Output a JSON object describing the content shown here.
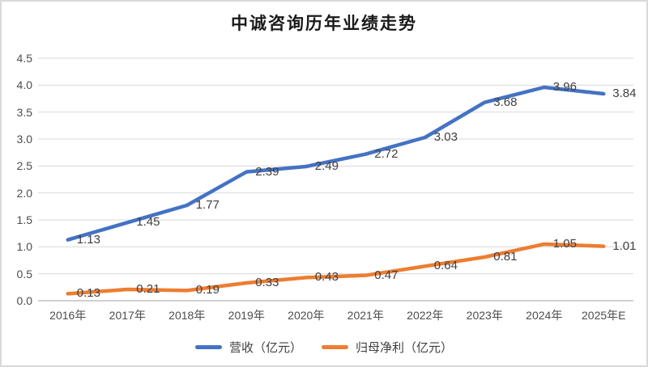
{
  "window": {
    "background": "#ffffff",
    "border_color": "#d9d9d9"
  },
  "chart_data": {
    "type": "line",
    "title": "中诚咨询历年业绩走势",
    "categories": [
      "2016年",
      "2017年",
      "2018年",
      "2019年",
      "2020年",
      "2021年",
      "2022年",
      "2023年",
      "2024年",
      "2025年E"
    ],
    "series": [
      {
        "name": "营收（亿元）",
        "color": "#4472C4",
        "values": [
          1.13,
          1.45,
          1.77,
          2.39,
          2.49,
          2.72,
          3.03,
          3.68,
          3.96,
          3.84
        ]
      },
      {
        "name": "归母净利（亿元）",
        "color": "#ED7D31",
        "values": [
          0.13,
          0.21,
          0.19,
          0.33,
          0.43,
          0.47,
          0.64,
          0.81,
          1.05,
          1.01
        ]
      }
    ],
    "xlabel": "",
    "ylabel": "",
    "ylim": [
      0,
      4.5
    ],
    "ytick_labels": [
      "0.0",
      "0.5",
      "1.0",
      "1.5",
      "2.0",
      "2.5",
      "3.0",
      "3.5",
      "4.0",
      "4.5"
    ],
    "grid": true,
    "grid_color": "#d9d9d9",
    "axis_color": "#bfbfbf",
    "tick_color": "#4d4d4d",
    "data_label_color": "#3f3f3f",
    "legend_position": "bottom",
    "data_labels": true
  }
}
